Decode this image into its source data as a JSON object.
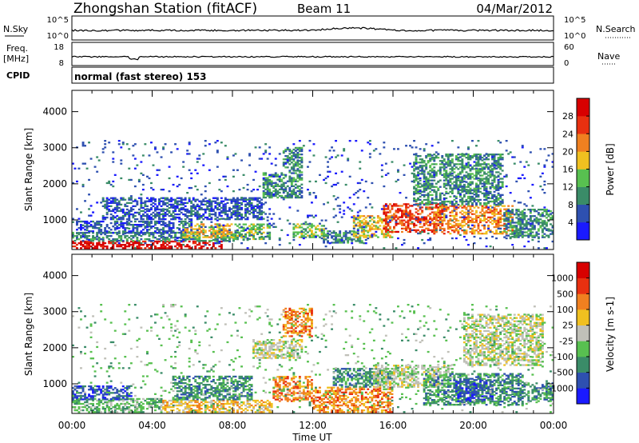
{
  "header": {
    "title": "Zhongshan Station (fitACF)",
    "beam": "Beam 11",
    "date": "04/Mar/2012"
  },
  "strip_sky": {
    "left_label": "N.Sky",
    "left_ticks": [
      "10^5",
      "10^0"
    ],
    "right_ticks": [
      "10^5",
      "10^0"
    ],
    "right_label": "N.Search"
  },
  "strip_freq": {
    "left_label": "Freq.",
    "left_unit": "[MHz]",
    "left_ticks": [
      "18",
      "8"
    ],
    "right_ticks": [
      "60",
      "0"
    ],
    "right_label": "Nave"
  },
  "cpid": {
    "label": "CPID",
    "text": "normal (fast stereo) 153"
  },
  "chart_data": [
    {
      "type": "heatmap",
      "name": "power",
      "xlabel": "Time UT",
      "ylabel": "Slant Range [km]",
      "x_ticks": [
        "00:00",
        "04:00",
        "08:00",
        "12:00",
        "16:00",
        "20:00",
        "00:00"
      ],
      "x_range_hours": [
        0,
        24
      ],
      "y_ticks": [
        1000,
        2000,
        3000,
        4000
      ],
      "ylim": [
        180,
        4590
      ],
      "colorbar": {
        "label": "Power [dB]",
        "ticks": [
          "4",
          "8",
          "12",
          "16",
          "20",
          "24",
          "28"
        ],
        "colors": [
          "#1a1aff",
          "#2e50b0",
          "#3a8c68",
          "#58c050",
          "#f0c020",
          "#f08020",
          "#e83010",
          "#d80000"
        ]
      },
      "regions": [
        {
          "t0": 0.0,
          "t1": 7.5,
          "r0": 200,
          "r1": 420,
          "level": 7
        },
        {
          "t0": 0.0,
          "t1": 8.5,
          "r0": 400,
          "r1": 650,
          "level": 2
        },
        {
          "t0": 0.3,
          "t1": 6.0,
          "r0": 620,
          "r1": 950,
          "level": 1
        },
        {
          "t0": 5.5,
          "t1": 8.0,
          "r0": 500,
          "r1": 900,
          "level": 4
        },
        {
          "t0": 8.0,
          "t1": 9.8,
          "r0": 450,
          "r1": 900,
          "level": 3
        },
        {
          "t0": 1.5,
          "t1": 9.5,
          "r0": 1000,
          "r1": 1600,
          "level": 1
        },
        {
          "t0": 9.5,
          "t1": 11.5,
          "r0": 1600,
          "r1": 2300,
          "level": 2
        },
        {
          "t0": 10.5,
          "t1": 11.5,
          "r0": 2300,
          "r1": 3000,
          "level": 2
        },
        {
          "t0": 11.0,
          "t1": 12.5,
          "r0": 500,
          "r1": 900,
          "level": 3
        },
        {
          "t0": 12.5,
          "t1": 14.5,
          "r0": 350,
          "r1": 700,
          "level": 2
        },
        {
          "t0": 14.0,
          "t1": 16.0,
          "r0": 500,
          "r1": 1100,
          "level": 4
        },
        {
          "t0": 15.5,
          "t1": 18.5,
          "r0": 650,
          "r1": 1450,
          "level": 6
        },
        {
          "t0": 18.0,
          "t1": 22.0,
          "r0": 600,
          "r1": 1400,
          "level": 5
        },
        {
          "t0": 17.0,
          "t1": 21.5,
          "r0": 1400,
          "r1": 2800,
          "level": 2
        },
        {
          "t0": 21.5,
          "t1": 24.0,
          "r0": 500,
          "r1": 1300,
          "level": 2
        },
        {
          "t0": 0.0,
          "t1": 24.0,
          "r0": 200,
          "r1": 3200,
          "level": 1
        }
      ]
    },
    {
      "type": "heatmap",
      "name": "velocity",
      "xlabel": "Time UT",
      "ylabel": "Slant Range [km]",
      "x_ticks": [
        "00:00",
        "04:00",
        "08:00",
        "12:00",
        "16:00",
        "20:00",
        "00:00"
      ],
      "x_range_hours": [
        0,
        24
      ],
      "y_ticks": [
        1000,
        2000,
        3000,
        4000
      ],
      "ylim": [
        180,
        4590
      ],
      "colorbar": {
        "label": "Velocity [m s-1]",
        "ticks": [
          "1000",
          "500",
          "100",
          "25",
          "-25",
          "-100",
          "-500",
          "-1000"
        ],
        "colors": [
          "#1a1aff",
          "#2e50b0",
          "#3a8c68",
          "#58c050",
          "#c0c0b8",
          "#f0c020",
          "#f08020",
          "#e83010",
          "#d80000"
        ]
      },
      "regions": [
        {
          "t0": 0.0,
          "t1": 4.5,
          "r0": 200,
          "r1": 600,
          "level": 3
        },
        {
          "t0": 0.0,
          "t1": 3.0,
          "r0": 550,
          "r1": 950,
          "level": 1
        },
        {
          "t0": 4.5,
          "t1": 10.0,
          "r0": 200,
          "r1": 550,
          "level": 5
        },
        {
          "t0": 5.0,
          "t1": 9.0,
          "r0": 550,
          "r1": 1200,
          "level": 2
        },
        {
          "t0": 10.0,
          "t1": 12.0,
          "r0": 500,
          "r1": 1200,
          "level": 6
        },
        {
          "t0": 10.5,
          "t1": 12.0,
          "r0": 2300,
          "r1": 3100,
          "level": 6
        },
        {
          "t0": 9.0,
          "t1": 11.5,
          "r0": 1700,
          "r1": 2200,
          "level": 4
        },
        {
          "t0": 12.0,
          "t1": 16.0,
          "r0": 200,
          "r1": 900,
          "level": 6
        },
        {
          "t0": 13.0,
          "t1": 16.0,
          "r0": 900,
          "r1": 1400,
          "level": 2
        },
        {
          "t0": 15.0,
          "t1": 19.0,
          "r0": 900,
          "r1": 1500,
          "level": 4
        },
        {
          "t0": 17.5,
          "t1": 22.5,
          "r0": 400,
          "r1": 1300,
          "level": 2
        },
        {
          "t0": 19.0,
          "t1": 21.0,
          "r0": 500,
          "r1": 1100,
          "level": 1
        },
        {
          "t0": 19.5,
          "t1": 23.5,
          "r0": 1500,
          "r1": 2900,
          "level": 4
        },
        {
          "t0": 22.5,
          "t1": 24.0,
          "r0": 500,
          "r1": 1000,
          "level": 2
        },
        {
          "t0": 0.0,
          "t1": 24.0,
          "r0": 200,
          "r1": 3200,
          "level": 3
        }
      ]
    }
  ]
}
